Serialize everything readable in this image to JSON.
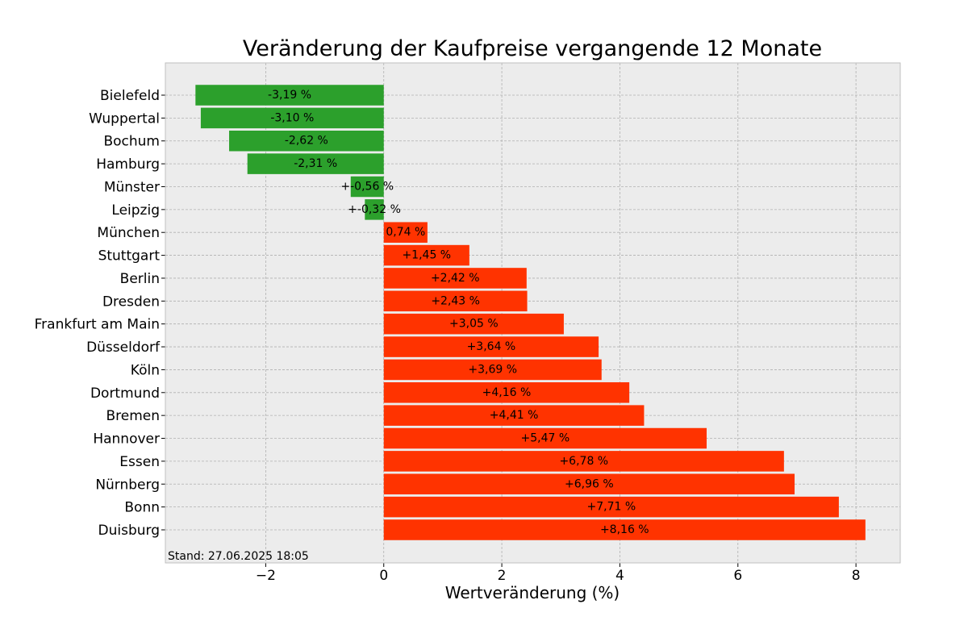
{
  "chart_data": {
    "type": "bar",
    "orientation": "horizontal",
    "title": "Veränderung der Kaufpreise vergangende 12 Monate",
    "xlabel": "Wertveränderung (%)",
    "ylabel": "",
    "xlim": [
      -3.7,
      8.75
    ],
    "xticks": [
      -2,
      0,
      2,
      4,
      6,
      8
    ],
    "xtick_labels": [
      "−2",
      "0",
      "2",
      "4",
      "6",
      "8"
    ],
    "grid": true,
    "colors": {
      "negative": "#2ca02c",
      "positive": "#ff3300",
      "plot_bg": "#ececec",
      "grid": "#b0b0b0"
    },
    "categories": [
      "Bielefeld",
      "Wuppertal",
      "Bochum",
      "Hamburg",
      "Münster",
      "Leipzig",
      "München",
      "Stuttgart",
      "Berlin",
      "Dresden",
      "Frankfurt am Main",
      "Düsseldorf",
      "Köln",
      "Dortmund",
      "Bremen",
      "Hannover",
      "Essen",
      "Nürnberg",
      "Bonn",
      "Duisburg"
    ],
    "values": [
      -3.19,
      -3.1,
      -2.62,
      -2.31,
      -0.56,
      -0.32,
      0.74,
      1.45,
      2.42,
      2.43,
      3.05,
      3.64,
      3.69,
      4.16,
      4.41,
      5.47,
      6.78,
      6.96,
      7.71,
      8.16
    ],
    "labels": [
      "-3,19 %",
      "-3,10 %",
      "-2,62 %",
      "-2,31 %",
      "+-0,56 %",
      "+-0,32 %",
      "0,74 %",
      "+1,45 %",
      "+2,42 %",
      "+2,43 %",
      "+3,05 %",
      "+3,64 %",
      "+3,69 %",
      "+4,16 %",
      "+4,41 %",
      "+5,47 %",
      "+6,78 %",
      "+6,96 %",
      "+7,71 %",
      "+8,16 %"
    ],
    "annotation": "Stand: 27.06.2025 18:05"
  }
}
